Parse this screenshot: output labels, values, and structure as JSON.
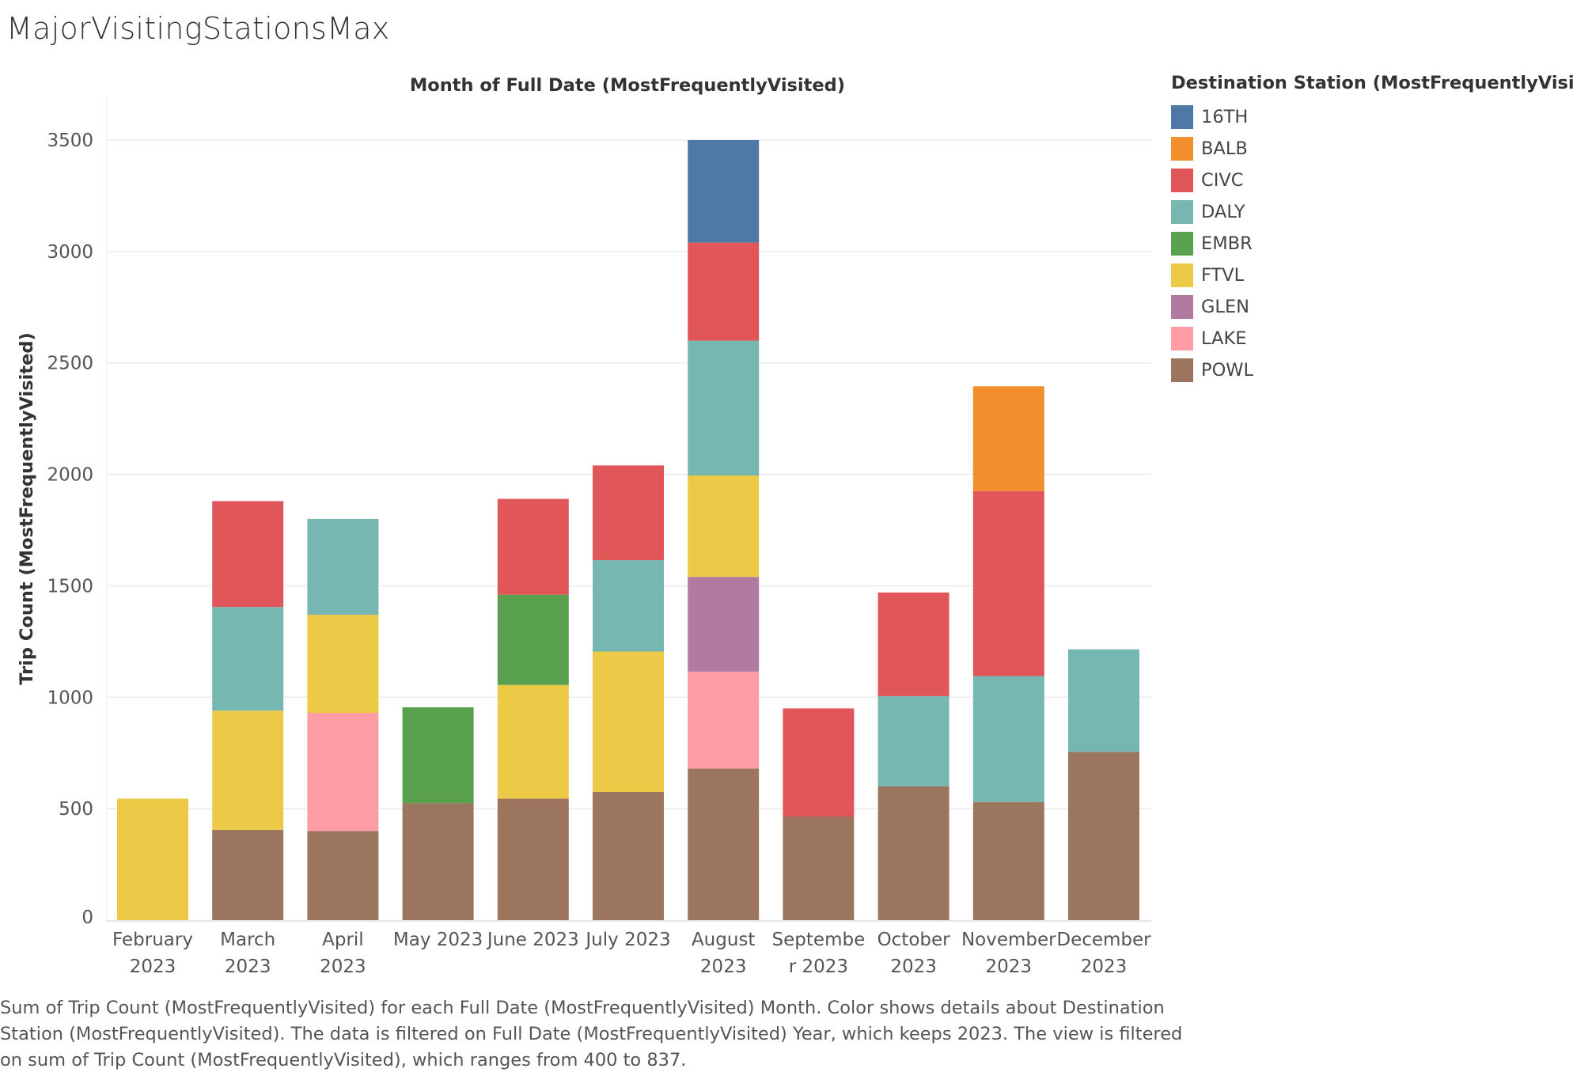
{
  "page": {
    "title": "MajorVisitingStationsMax",
    "caption": "Sum of Trip Count (MostFrequentlyVisited) for each Full Date (MostFrequentlyVisited) Month.  Color shows details about Destination Station (MostFrequentlyVisited). The data is filtered on Full Date (MostFrequentlyVisited) Year, which keeps 2023. The view is filtered on sum of Trip Count (MostFrequentlyVisited), which ranges from 400 to 837."
  },
  "legend": {
    "title": "Destination Station (MostFrequentlyVisited)",
    "items": [
      {
        "label": "16TH",
        "color": "#4e79a7"
      },
      {
        "label": "BALB",
        "color": "#f28e2b"
      },
      {
        "label": "CIVC",
        "color": "#e15759"
      },
      {
        "label": "DALY",
        "color": "#76b7b2"
      },
      {
        "label": "EMBR",
        "color": "#59a14f"
      },
      {
        "label": "FTVL",
        "color": "#edc948"
      },
      {
        "label": "GLEN",
        "color": "#b07aa1"
      },
      {
        "label": "LAKE",
        "color": "#ff9da7"
      },
      {
        "label": "POWL",
        "color": "#9c755f"
      }
    ]
  },
  "chart_data": {
    "type": "bar",
    "stacked": true,
    "xlabel": "Month of Full Date (MostFrequentlyVisited)",
    "ylabel": "Trip Count (MostFrequentlyVisited)",
    "ylim": [
      0,
      3650
    ],
    "yticks": [
      0,
      500,
      1000,
      1500,
      2000,
      2500,
      3000,
      3500
    ],
    "grid": true,
    "legend_position": "right",
    "categories": [
      [
        "February",
        "2023"
      ],
      [
        "March",
        "2023"
      ],
      [
        "April",
        "2023"
      ],
      [
        "May 2023"
      ],
      [
        "June 2023"
      ],
      [
        "July 2023"
      ],
      [
        "August",
        "2023"
      ],
      [
        "Septembe",
        "r 2023"
      ],
      [
        "October",
        "2023"
      ],
      [
        "November",
        "2023"
      ],
      [
        "December",
        "2023"
      ]
    ],
    "series": [
      {
        "name": "POWL",
        "color": "#9c755f",
        "values": [
          0,
          405,
          400,
          525,
          545,
          575,
          680,
          465,
          600,
          530,
          755
        ]
      },
      {
        "name": "LAKE",
        "color": "#ff9da7",
        "values": [
          0,
          0,
          530,
          0,
          0,
          0,
          435,
          0,
          0,
          0,
          0
        ]
      },
      {
        "name": "GLEN",
        "color": "#b07aa1",
        "values": [
          0,
          0,
          0,
          0,
          0,
          0,
          425,
          0,
          0,
          0,
          0
        ]
      },
      {
        "name": "FTVL",
        "color": "#edc948",
        "values": [
          545,
          535,
          440,
          0,
          510,
          630,
          455,
          0,
          0,
          0,
          0
        ]
      },
      {
        "name": "EMBR",
        "color": "#59a14f",
        "values": [
          0,
          0,
          0,
          430,
          405,
          0,
          0,
          0,
          0,
          0,
          0
        ]
      },
      {
        "name": "DALY",
        "color": "#76b7b2",
        "values": [
          0,
          465,
          430,
          0,
          0,
          410,
          605,
          0,
          405,
          565,
          460
        ]
      },
      {
        "name": "CIVC",
        "color": "#e15759",
        "values": [
          0,
          475,
          0,
          0,
          430,
          425,
          440,
          485,
          465,
          830,
          0
        ]
      },
      {
        "name": "BALB",
        "color": "#f28e2b",
        "values": [
          0,
          0,
          0,
          0,
          0,
          0,
          0,
          0,
          0,
          470,
          0
        ]
      },
      {
        "name": "16TH",
        "color": "#4e79a7",
        "values": [
          0,
          0,
          0,
          0,
          0,
          0,
          460,
          0,
          0,
          0,
          0
        ]
      }
    ]
  }
}
